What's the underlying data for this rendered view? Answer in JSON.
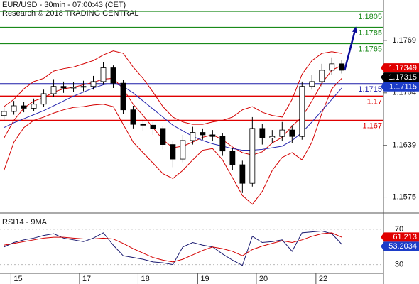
{
  "chart_data": [
    {
      "type": "candlestick",
      "title": "EUR/USD - 30min - 07:00:43 (CET)",
      "subtitle": "Research © 2018 TRADING CENTRAL",
      "x": [
        0,
        1,
        2,
        3,
        4,
        5,
        6,
        7,
        8,
        9,
        10,
        11,
        12,
        13,
        14,
        15,
        16,
        17,
        18,
        19,
        20,
        21,
        22,
        23,
        24,
        25,
        26,
        27,
        28,
        29,
        30,
        31,
        32,
        33,
        34
      ],
      "open": [
        1.1676,
        1.1681,
        1.1688,
        1.1685,
        1.169,
        1.1703,
        1.1712,
        1.171,
        1.1711,
        1.1712,
        1.1718,
        1.1735,
        1.1716,
        1.1683,
        1.1665,
        1.1664,
        1.166,
        1.164,
        1.1622,
        1.1645,
        1.1655,
        1.1652,
        1.165,
        1.1632,
        1.1615,
        1.1592,
        1.166,
        1.1648,
        1.165,
        1.1658,
        1.165,
        1.1712,
        1.1718,
        1.1732,
        1.174
      ],
      "high": [
        1.1686,
        1.1694,
        1.1693,
        1.1697,
        1.1708,
        1.1721,
        1.1718,
        1.1717,
        1.1719,
        1.1725,
        1.1742,
        1.1738,
        1.172,
        1.1688,
        1.1672,
        1.1668,
        1.1663,
        1.1645,
        1.1652,
        1.1662,
        1.166,
        1.1658,
        1.1654,
        1.1636,
        1.162,
        1.1674,
        1.1666,
        1.1658,
        1.1668,
        1.1664,
        1.1718,
        1.1726,
        1.174,
        1.1748,
        1.1745
      ],
      "low": [
        1.167,
        1.1677,
        1.168,
        1.1681,
        1.1687,
        1.1699,
        1.1704,
        1.1705,
        1.1706,
        1.1708,
        1.1714,
        1.171,
        1.1678,
        1.166,
        1.1657,
        1.1652,
        1.1634,
        1.1612,
        1.1618,
        1.164,
        1.1646,
        1.1644,
        1.1626,
        1.1608,
        1.158,
        1.1588,
        1.164,
        1.1642,
        1.1644,
        1.1642,
        1.1646,
        1.1708,
        1.1712,
        1.1726,
        1.1728
      ],
      "close": [
        1.1681,
        1.1688,
        1.1685,
        1.169,
        1.1703,
        1.1712,
        1.171,
        1.1711,
        1.1712,
        1.1718,
        1.1735,
        1.1716,
        1.1683,
        1.1665,
        1.1664,
        1.166,
        1.164,
        1.1622,
        1.1645,
        1.1655,
        1.1652,
        1.165,
        1.1632,
        1.1615,
        1.1592,
        1.166,
        1.1648,
        1.165,
        1.1658,
        1.165,
        1.1712,
        1.1718,
        1.1732,
        1.174,
        1.1732
      ],
      "lines": [
        {
          "color": "#d40000",
          "values": [
            1.1687,
            1.1696,
            1.1709,
            1.1718,
            1.1722,
            1.1731,
            1.1734,
            1.1736,
            1.174,
            1.1744,
            1.1751,
            1.1756,
            1.1753,
            1.1736,
            1.1722,
            1.1705,
            1.1687,
            1.1674,
            1.1668,
            1.1665,
            1.1665,
            1.1668,
            1.167,
            1.1674,
            1.1683,
            1.1687,
            1.168,
            1.1676,
            1.1674,
            1.1696,
            1.1727,
            1.1744,
            1.1753,
            1.1755,
            1.1753
          ]
        },
        {
          "color": "#d40000",
          "values": [
            1.1648,
            1.167,
            1.1685,
            1.1694,
            1.1698,
            1.1705,
            1.1709,
            1.1711,
            1.1714,
            1.1717,
            1.1721,
            1.1722,
            1.1709,
            1.169,
            1.1676,
            1.1661,
            1.1646,
            1.1636,
            1.1638,
            1.1643,
            1.1649,
            1.1652,
            1.1646,
            1.1637,
            1.163,
            1.1627,
            1.1631,
            1.1642,
            1.1649,
            1.1663,
            1.1674,
            1.1694,
            1.1716,
            1.1732,
            1.1738
          ]
        },
        {
          "color": "#d40000",
          "values": [
            1.1608,
            1.1643,
            1.1661,
            1.167,
            1.1674,
            1.1679,
            1.1683,
            1.1686,
            1.1687,
            1.1689,
            1.169,
            1.1687,
            1.1665,
            1.1643,
            1.163,
            1.1617,
            1.1604,
            1.1598,
            1.1608,
            1.1621,
            1.1633,
            1.1635,
            1.1621,
            1.1599,
            1.1577,
            1.1566,
            1.1582,
            1.1608,
            1.1624,
            1.163,
            1.1621,
            1.1643,
            1.1679,
            1.1709,
            1.1722
          ]
        },
        {
          "color": "#2a2ab0",
          "values": [
            1.1661,
            1.1667,
            1.1672,
            1.1677,
            1.1682,
            1.1688,
            1.1694,
            1.17,
            1.1705,
            1.171,
            1.1714,
            1.1716,
            1.1712,
            1.1704,
            1.1694,
            1.1684,
            1.1674,
            1.1664,
            1.1657,
            1.165,
            1.1645,
            1.1641,
            1.1638,
            1.1635,
            1.1633,
            1.1633,
            1.1634,
            1.1636,
            1.1638,
            1.1645,
            1.1655,
            1.1668,
            1.1682,
            1.1696,
            1.171
          ]
        }
      ],
      "levels": [
        {
          "value": 1.1805,
          "color": "#1a8a1a"
        },
        {
          "value": 1.1785,
          "color": "#1a8a1a"
        },
        {
          "value": 1.1765,
          "color": "#1a8a1a"
        },
        {
          "value": 1.1715,
          "color": "#1c1ca8"
        },
        {
          "value": 1.17,
          "color": "#e00000"
        },
        {
          "value": 1.167,
          "color": "#e00000"
        }
      ],
      "markers": [
        {
          "value": 1.17349,
          "color": "#e00000"
        },
        {
          "value": 1.17315,
          "color": "#000000"
        },
        {
          "value": 1.17115,
          "color": "#1c3cc8"
        }
      ],
      "target_arrow": {
        "from": 1.1732,
        "to": 1.1786,
        "color": "#0a0a9a"
      },
      "xlim": [
        -0.4,
        38.2
      ],
      "ylim": [
        1.1557,
        1.1819
      ],
      "yticks": [
        1.1769,
        1.1704,
        1.1639,
        1.1575
      ]
    },
    {
      "type": "line",
      "title": "RSI14 - 9MA",
      "x": [
        0,
        1,
        2,
        3,
        4,
        5,
        6,
        7,
        8,
        9,
        10,
        11,
        12,
        13,
        14,
        15,
        16,
        17,
        18,
        19,
        20,
        21,
        22,
        23,
        24,
        25,
        26,
        27,
        28,
        29,
        30,
        31,
        32,
        33,
        34
      ],
      "series": [
        {
          "color": "#1a1a70",
          "values": [
            50,
            55,
            58,
            60,
            63,
            65,
            60,
            58,
            56,
            60,
            66,
            52,
            40,
            38,
            36,
            33,
            32,
            30,
            50,
            55,
            52,
            50,
            42,
            35,
            29,
            62,
            55,
            56,
            58,
            45,
            66,
            67,
            68,
            65,
            53
          ]
        },
        {
          "color": "#d40000",
          "values": [
            52,
            54,
            56,
            58,
            60,
            61,
            61,
            60,
            59,
            59,
            60,
            59,
            54,
            48,
            43,
            38,
            35,
            33,
            36,
            41,
            46,
            50,
            48,
            45,
            40,
            47,
            51,
            54,
            57,
            55,
            58,
            62,
            65,
            66,
            61
          ]
        }
      ],
      "markers": [
        {
          "value": 61.213,
          "color": "#e00000"
        },
        {
          "value": 53.2034,
          "color": "#1c3cc8"
        }
      ],
      "xlim": [
        -0.4,
        38.2
      ],
      "ylim": [
        20,
        82
      ],
      "yticks": [
        70,
        30
      ],
      "xticks": [
        {
          "value": 0.7,
          "label": "15"
        },
        {
          "value": 7.6,
          "label": "17"
        },
        {
          "value": 13.5,
          "label": "18"
        },
        {
          "value": 19.5,
          "label": "19"
        },
        {
          "value": 25.4,
          "label": "20"
        },
        {
          "value": 31.4,
          "label": "22"
        }
      ]
    }
  ]
}
